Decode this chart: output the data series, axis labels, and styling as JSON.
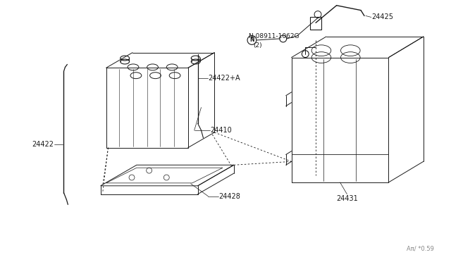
{
  "bg_color": "#ffffff",
  "line_color": "#1a1a1a",
  "fig_width": 6.4,
  "fig_height": 3.72,
  "dpi": 100,
  "parts": {
    "24410": "24410",
    "24422": "24422",
    "24422A": "24422+A",
    "24428": "24428",
    "24425": "24425",
    "24431": "24431",
    "08911_line1": "N 08911-1062G",
    "08911_line2": "(2)"
  },
  "watermark": "Aπ/ *0.59"
}
